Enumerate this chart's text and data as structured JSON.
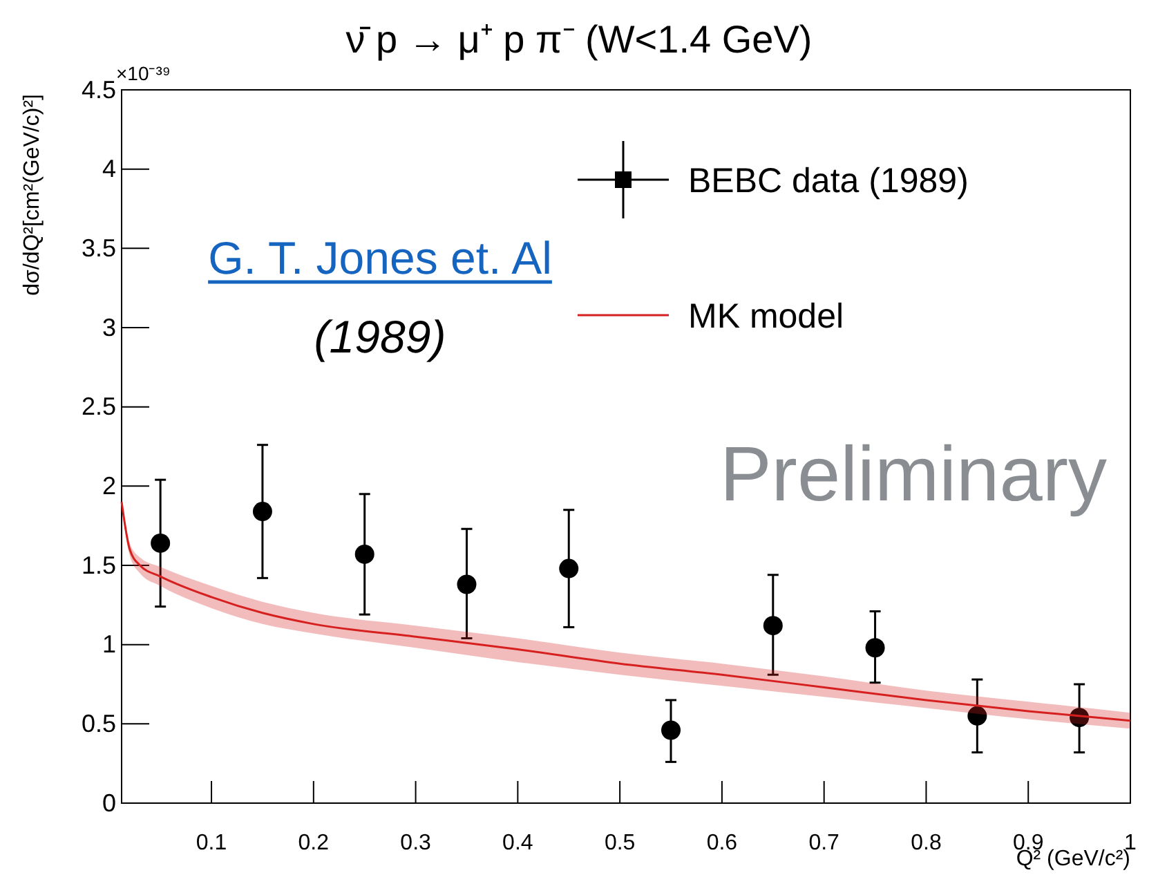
{
  "chart_data": {
    "type": "scatter",
    "title": "ν̄ p → μ⁺ p π⁻ (W<1.4 GeV)",
    "xlabel": "Q² (GeV/c²)",
    "ylabel": "dσ/dQ²[cm²(GeV/c)²]",
    "xlim": [
      0.012,
      1
    ],
    "xticks": [
      0.1,
      0.2,
      0.3,
      0.4,
      0.5,
      0.6,
      0.7,
      0.8,
      0.9,
      1
    ],
    "ylim": [
      0,
      4.5
    ],
    "yticks": [
      0,
      0.5,
      1,
      1.5,
      2,
      2.5,
      3,
      3.5,
      4,
      4.5
    ],
    "grid": false,
    "legend": "top right",
    "annotations": [
      "×10⁻³⁹",
      "G. T. Jones et. Al",
      "(1989)",
      "Preliminary"
    ],
    "series": [
      {
        "name": "BEBC data (1989)",
        "marker": "circle",
        "color": "#000000",
        "x": [
          0.05,
          0.15,
          0.25,
          0.35,
          0.45,
          0.55,
          0.65,
          0.75,
          0.85,
          0.95
        ],
        "values": [
          1.64,
          1.84,
          1.57,
          1.38,
          1.48,
          0.46,
          1.12,
          0.98,
          0.55,
          0.54
        ],
        "errors": [
          [
            1.24,
            2.04
          ],
          [
            1.42,
            2.26
          ],
          [
            1.19,
            1.95
          ],
          [
            1.04,
            1.73
          ],
          [
            1.11,
            1.85
          ],
          [
            0.26,
            0.65
          ],
          [
            0.81,
            1.44
          ],
          [
            0.76,
            1.21
          ],
          [
            0.32,
            0.78
          ],
          [
            0.32,
            0.75
          ]
        ]
      },
      {
        "name": "MK model",
        "type": "line",
        "marker": "none",
        "color": "#d62020",
        "line_style": "solid",
        "x": [
          0.012,
          0.02,
          0.03,
          0.05,
          0.1,
          0.15,
          0.2,
          0.3,
          0.4,
          0.5,
          0.6,
          0.7,
          0.8,
          0.9,
          1
        ],
        "values": [
          1.9,
          1.6,
          1.5,
          1.43,
          1.3,
          1.2,
          1.13,
          1.05,
          0.97,
          0.88,
          0.81,
          0.73,
          0.65,
          0.58,
          0.52
        ],
        "lower": [
          1.88,
          1.56,
          1.45,
          1.37,
          1.23,
          1.13,
          1.07,
          0.98,
          0.89,
          0.81,
          0.74,
          0.67,
          0.6,
          0.53,
          0.47
        ],
        "upper": [
          1.92,
          1.64,
          1.55,
          1.49,
          1.37,
          1.27,
          1.2,
          1.12,
          1.04,
          0.95,
          0.88,
          0.8,
          0.71,
          0.64,
          0.57
        ]
      }
    ]
  }
}
